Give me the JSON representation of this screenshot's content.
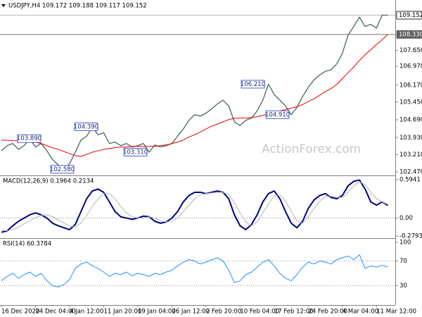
{
  "chart_data": [
    {
      "type": "line",
      "title": "USDJPY,H4 109.172 109.188 109.117 109.152",
      "categories": [
        "16 Dec 2020",
        null,
        null,
        null,
        null,
        null,
        "24 Dec 04:00",
        null,
        null,
        null,
        null,
        null,
        "4 Jan 12:00",
        null,
        null,
        null,
        null,
        null,
        "11 Jan 20:00",
        null,
        null,
        null,
        null,
        null,
        "19 Jan 04:00",
        null,
        null,
        null,
        null,
        null,
        "26 Jan 12:00",
        null,
        null,
        null,
        null,
        null,
        "2 Feb 20:00",
        null,
        null,
        null,
        null,
        null,
        "10 Feb 04:00",
        null,
        null,
        null,
        null,
        null,
        "17 Feb 12:00",
        null,
        null,
        null,
        null,
        null,
        "24 Feb 20:00",
        null,
        null,
        null,
        null,
        null,
        "4 Mar 04:00",
        null,
        null,
        null,
        null,
        null,
        "11 Mar 12:00",
        null,
        null
      ],
      "series": [
        {
          "color": "#3b5b5b",
          "values": [
            103.37,
            103.59,
            103.68,
            103.43,
            103.59,
            103.89,
            103.53,
            103.68,
            103.37,
            103.0,
            102.76,
            102.58,
            102.82,
            103.31,
            103.83,
            103.99,
            104.39,
            104.05,
            104.14,
            103.68,
            103.74,
            103.59,
            103.68,
            103.53,
            103.59,
            103.68,
            103.31,
            103.62,
            103.53,
            103.59,
            103.68,
            103.99,
            104.3,
            104.67,
            104.91,
            104.85,
            104.97,
            105.16,
            105.37,
            105.53,
            105.28,
            104.6,
            104.45,
            104.67,
            104.76,
            105.07,
            105.53,
            106.21,
            105.77,
            105.53,
            105.28,
            104.91,
            105.22,
            105.68,
            106.08,
            106.39,
            106.6,
            106.76,
            106.82,
            107.07,
            107.53,
            108.3,
            108.67,
            109.07,
            108.67,
            108.76,
            108.6,
            109.16,
            109.152
          ]
        },
        {
          "color": "#e00000",
          "values": [
            103.83,
            103.82,
            103.8,
            103.8,
            103.77,
            103.77,
            103.74,
            103.68,
            103.59,
            103.5,
            103.43,
            103.34,
            103.25,
            103.16,
            103.13,
            103.22,
            103.31,
            103.37,
            103.43,
            103.47,
            103.5,
            103.53,
            103.53,
            103.56,
            103.56,
            103.56,
            103.56,
            103.56,
            103.59,
            103.62,
            103.68,
            103.74,
            103.83,
            103.96,
            104.05,
            104.17,
            104.3,
            104.42,
            104.51,
            104.6,
            104.7,
            104.76,
            104.76,
            104.76,
            104.79,
            104.82,
            104.88,
            104.94,
            105.0,
            105.07,
            105.13,
            105.19,
            105.25,
            105.34,
            105.47,
            105.59,
            105.74,
            105.9,
            106.02,
            106.2,
            106.45,
            106.7,
            106.94,
            107.22,
            107.47,
            107.68,
            107.9,
            108.11,
            108.33
          ]
        }
      ],
      "ylim": [
        102.35,
        109.8
      ],
      "yticks": [
        {
          "value": 107.65,
          "label": "107.650"
        },
        {
          "value": 106.97,
          "label": "106.970"
        },
        {
          "value": 106.17,
          "label": "106.170"
        },
        {
          "value": 105.45,
          "label": "105.450"
        },
        {
          "value": 104.69,
          "label": "104.690"
        },
        {
          "value": 103.93,
          "label": "103.930"
        },
        {
          "value": 103.21,
          "label": "103.210"
        },
        {
          "value": 102.47,
          "label": "102.470"
        }
      ],
      "markers": [
        {
          "value": 109.152,
          "label": "109.152"
        },
        {
          "value": 108.33,
          "label": "108.330"
        }
      ],
      "annotations": [
        {
          "value": 103.89,
          "label": "103.890"
        },
        {
          "value": 102.58,
          "label": "102.580"
        },
        {
          "value": 104.39,
          "label": "104.390"
        },
        {
          "value": 103.31,
          "label": "103.310"
        },
        {
          "value": 106.21,
          "label": "106.210"
        },
        {
          "value": 104.91,
          "label": "104.910"
        }
      ]
    },
    {
      "type": "line",
      "title": "MACD(12,26,9) 0.1964 0.2134",
      "series": [
        {
          "color": "#000080",
          "values": [
            -0.22,
            -0.2,
            -0.12,
            -0.05,
            0,
            0.05,
            0.08,
            0.05,
            0,
            -0.08,
            -0.12,
            -0.15,
            -0.18,
            -0.1,
            0.1,
            0.3,
            0.42,
            0.45,
            0.4,
            0.25,
            0.1,
            0.02,
            0,
            -0.02,
            0,
            0.03,
            0.02,
            -0.05,
            -0.08,
            -0.06,
            0,
            0.1,
            0.25,
            0.35,
            0.4,
            0.4,
            0.38,
            0.4,
            0.42,
            0.4,
            0.3,
            0.05,
            -0.12,
            -0.18,
            -0.1,
            0.05,
            0.25,
            0.38,
            0.42,
            0.3,
            0.1,
            -0.08,
            -0.15,
            -0.05,
            0.15,
            0.28,
            0.35,
            0.38,
            0.32,
            0.3,
            0.35,
            0.5,
            0.57,
            0.59,
            0.45,
            0.25,
            0.2,
            0.25,
            0.1964
          ]
        },
        {
          "color": "#b4b4b4",
          "values": [
            -0.18,
            -0.2,
            -0.18,
            -0.14,
            -0.09,
            -0.04,
            0.01,
            0.04,
            0.05,
            0.02,
            -0.03,
            -0.08,
            -0.12,
            -0.14,
            -0.08,
            0.04,
            0.18,
            0.3,
            0.38,
            0.38,
            0.3,
            0.18,
            0.08,
            0.02,
            0,
            0,
            0.02,
            0,
            -0.04,
            -0.06,
            -0.05,
            0,
            0.1,
            0.2,
            0.3,
            0.36,
            0.38,
            0.39,
            0.4,
            0.4,
            0.36,
            0.24,
            0.08,
            -0.06,
            -0.12,
            -0.06,
            0.08,
            0.22,
            0.34,
            0.36,
            0.26,
            0.1,
            -0.04,
            -0.08,
            0.02,
            0.15,
            0.26,
            0.33,
            0.34,
            0.32,
            0.32,
            0.4,
            0.5,
            0.56,
            0.52,
            0.4,
            0.3,
            0.25,
            0.2134
          ]
        }
      ],
      "ylim": [
        -0.3,
        0.64
      ],
      "yticks": [
        0.5941,
        {
          "value": 0,
          "label": "0.00"
        },
        -0.2793
      ],
      "levels": [
        0
      ]
    },
    {
      "type": "line",
      "title": "RSI(14) 60.3784",
      "series": [
        {
          "color": "#1e90ff",
          "values": [
            38,
            45,
            50,
            42,
            48,
            52,
            45,
            50,
            38,
            30,
            28,
            32,
            40,
            58,
            65,
            68,
            62,
            58,
            52,
            45,
            50,
            48,
            52,
            46,
            50,
            48,
            45,
            50,
            48,
            52,
            55,
            62,
            68,
            72,
            70,
            65,
            68,
            72,
            75,
            70,
            55,
            35,
            38,
            48,
            52,
            60,
            68,
            72,
            62,
            50,
            42,
            38,
            48,
            60,
            68,
            65,
            70,
            68,
            65,
            72,
            75,
            78,
            72,
            80,
            58,
            62,
            60,
            63,
            60.3784
          ]
        }
      ],
      "ylim": [
        0,
        100
      ],
      "yticks": [
        100,
        70,
        30
      ],
      "levels": [
        70,
        30
      ]
    }
  ],
  "watermark": "ActionForex.com"
}
